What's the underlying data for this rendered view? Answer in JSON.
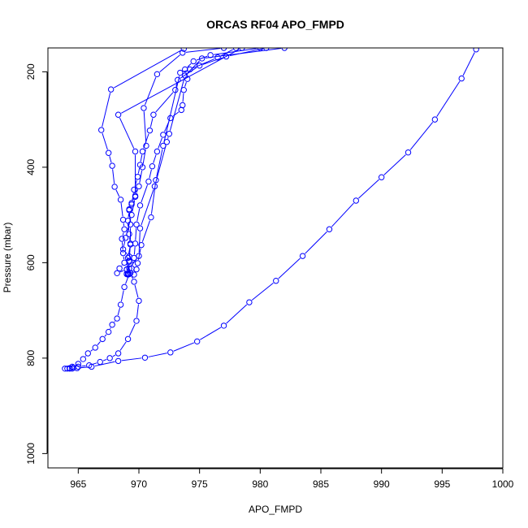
{
  "chart_data": {
    "type": "line",
    "title": "ORCAS RF04 APO_FMPD",
    "xlabel": "APO_FMPD",
    "ylabel": "Pressure (mbar)",
    "xlim": [
      962.5,
      1000
    ],
    "ylim": [
      1030,
      150
    ],
    "y_axis_inverted": true,
    "grid": false,
    "legend": "none",
    "colors": {
      "series": "#0000ff",
      "axis": "#000000",
      "background": "#ffffff"
    },
    "x_ticks": [
      965,
      970,
      975,
      980,
      985,
      990,
      995,
      1000
    ],
    "x_tick_labels": [
      "965",
      "970",
      "975",
      "980",
      "985",
      "990",
      "995",
      "1000"
    ],
    "y_ticks": [
      200,
      400,
      600,
      800,
      1000
    ],
    "y_tick_labels": [
      "200",
      "400",
      "600",
      "800",
      "1000"
    ],
    "series": [
      {
        "values": [
          [
            997.8,
            153
          ],
          [
            996.6,
            214
          ],
          [
            994.4,
            300
          ],
          [
            992.2,
            369
          ],
          [
            990.0,
            421
          ],
          [
            987.9,
            470
          ],
          [
            985.7,
            530
          ],
          [
            983.5,
            586
          ],
          [
            981.3,
            638
          ],
          [
            979.1,
            683
          ],
          [
            977.0,
            732
          ],
          [
            974.8,
            765
          ],
          [
            972.6,
            788
          ],
          [
            970.5,
            799
          ],
          [
            968.3,
            806
          ],
          [
            966.1,
            818
          ],
          [
            964.9,
            821
          ],
          [
            964.5,
            822
          ],
          [
            964.3,
            822
          ],
          [
            964.1,
            822
          ],
          [
            963.9,
            822
          ]
        ]
      },
      {
        "values": [
          [
            980.0,
            150
          ],
          [
            975.9,
            165
          ],
          [
            974.5,
            178
          ],
          [
            973.8,
            195
          ],
          [
            974.0,
            215
          ],
          [
            973.7,
            238
          ],
          [
            973.6,
            270
          ],
          [
            973.5,
            280
          ],
          [
            972.6,
            297
          ],
          [
            972.0,
            332
          ],
          [
            971.5,
            367
          ],
          [
            971.1,
            398
          ],
          [
            970.8,
            430
          ],
          [
            970.1,
            480
          ],
          [
            969.8,
            520
          ],
          [
            969.7,
            560
          ],
          [
            969.6,
            590
          ],
          [
            969.4,
            612
          ],
          [
            969.3,
            622
          ],
          [
            969.6,
            640
          ],
          [
            970.0,
            680
          ],
          [
            969.8,
            722
          ],
          [
            969.1,
            760
          ],
          [
            968.3,
            790
          ],
          [
            967.6,
            800
          ],
          [
            966.8,
            808
          ],
          [
            965.9,
            815
          ],
          [
            965.0,
            818
          ],
          [
            964.6,
            820
          ],
          [
            964.3,
            821
          ]
        ]
      },
      {
        "values": [
          [
            977.0,
            150
          ],
          [
            973.6,
            160
          ],
          [
            971.5,
            205
          ],
          [
            970.4,
            276
          ],
          [
            970.6,
            355
          ],
          [
            970.3,
            400
          ],
          [
            970.0,
            440
          ],
          [
            969.7,
            460
          ],
          [
            969.4,
            475
          ],
          [
            969.2,
            490
          ],
          [
            969.1,
            512
          ],
          [
            969.2,
            540
          ],
          [
            969.3,
            562
          ],
          [
            969.1,
            590
          ],
          [
            969.0,
            614
          ],
          [
            969.2,
            624
          ],
          [
            968.8,
            651
          ],
          [
            968.5,
            688
          ],
          [
            968.2,
            717
          ],
          [
            967.8,
            730
          ],
          [
            967.5,
            745
          ],
          [
            967.0,
            760
          ],
          [
            966.4,
            778
          ],
          [
            965.8,
            790
          ],
          [
            965.4,
            802
          ],
          [
            965.0,
            812
          ],
          [
            964.5,
            818
          ]
        ]
      },
      {
        "values": [
          [
            973.7,
            152
          ],
          [
            967.7,
            237
          ],
          [
            966.9,
            322
          ],
          [
            967.5,
            370
          ],
          [
            967.8,
            397
          ],
          [
            968.0,
            441
          ],
          [
            968.5,
            468
          ],
          [
            968.7,
            510
          ],
          [
            968.8,
            530
          ],
          [
            968.6,
            550
          ],
          [
            968.7,
            580
          ],
          [
            968.8,
            600
          ],
          [
            968.4,
            612
          ],
          [
            968.2,
            622
          ],
          [
            969.0,
            614
          ],
          [
            969.0,
            624
          ]
        ]
      },
      {
        "values": [
          [
            980.5,
            150
          ],
          [
            977.2,
            168
          ],
          [
            975.0,
            187
          ],
          [
            973.2,
            217
          ],
          [
            973.0,
            238
          ],
          [
            971.2,
            290
          ],
          [
            970.9,
            323
          ],
          [
            970.3,
            367
          ],
          [
            970.1,
            395
          ],
          [
            969.9,
            420
          ],
          [
            969.6,
            447
          ],
          [
            969.4,
            478
          ],
          [
            969.2,
            488
          ],
          [
            969.3,
            520
          ],
          [
            969.3,
            560
          ],
          [
            969.2,
            596
          ],
          [
            969.1,
            623
          ]
        ]
      },
      {
        "values": [
          [
            978.5,
            150
          ],
          [
            968.3,
            290
          ],
          [
            969.7,
            367
          ],
          [
            969.7,
            462
          ],
          [
            969.4,
            500
          ],
          [
            968.9,
            548
          ],
          [
            968.7,
            572
          ],
          [
            969.2,
            587
          ],
          [
            969.2,
            598
          ],
          [
            969.0,
            623
          ]
        ]
      },
      {
        "values": [
          [
            978.0,
            150
          ],
          [
            976.5,
            170
          ],
          [
            974.2,
            195
          ],
          [
            973.4,
            202
          ],
          [
            972.0,
            355
          ],
          [
            971.4,
            427
          ],
          [
            971.0,
            505
          ],
          [
            970.2,
            563
          ],
          [
            969.9,
            601
          ],
          [
            969.8,
            614
          ],
          [
            969.6,
            625
          ]
        ]
      },
      {
        "values": [
          [
            982.0,
            150
          ],
          [
            975.2,
            172
          ],
          [
            973.8,
            208
          ],
          [
            972.5,
            330
          ],
          [
            972.3,
            347
          ],
          [
            971.3,
            440
          ],
          [
            970.1,
            528
          ],
          [
            970.0,
            586
          ],
          [
            969.2,
            612
          ],
          [
            969.1,
            625
          ]
        ]
      }
    ]
  }
}
